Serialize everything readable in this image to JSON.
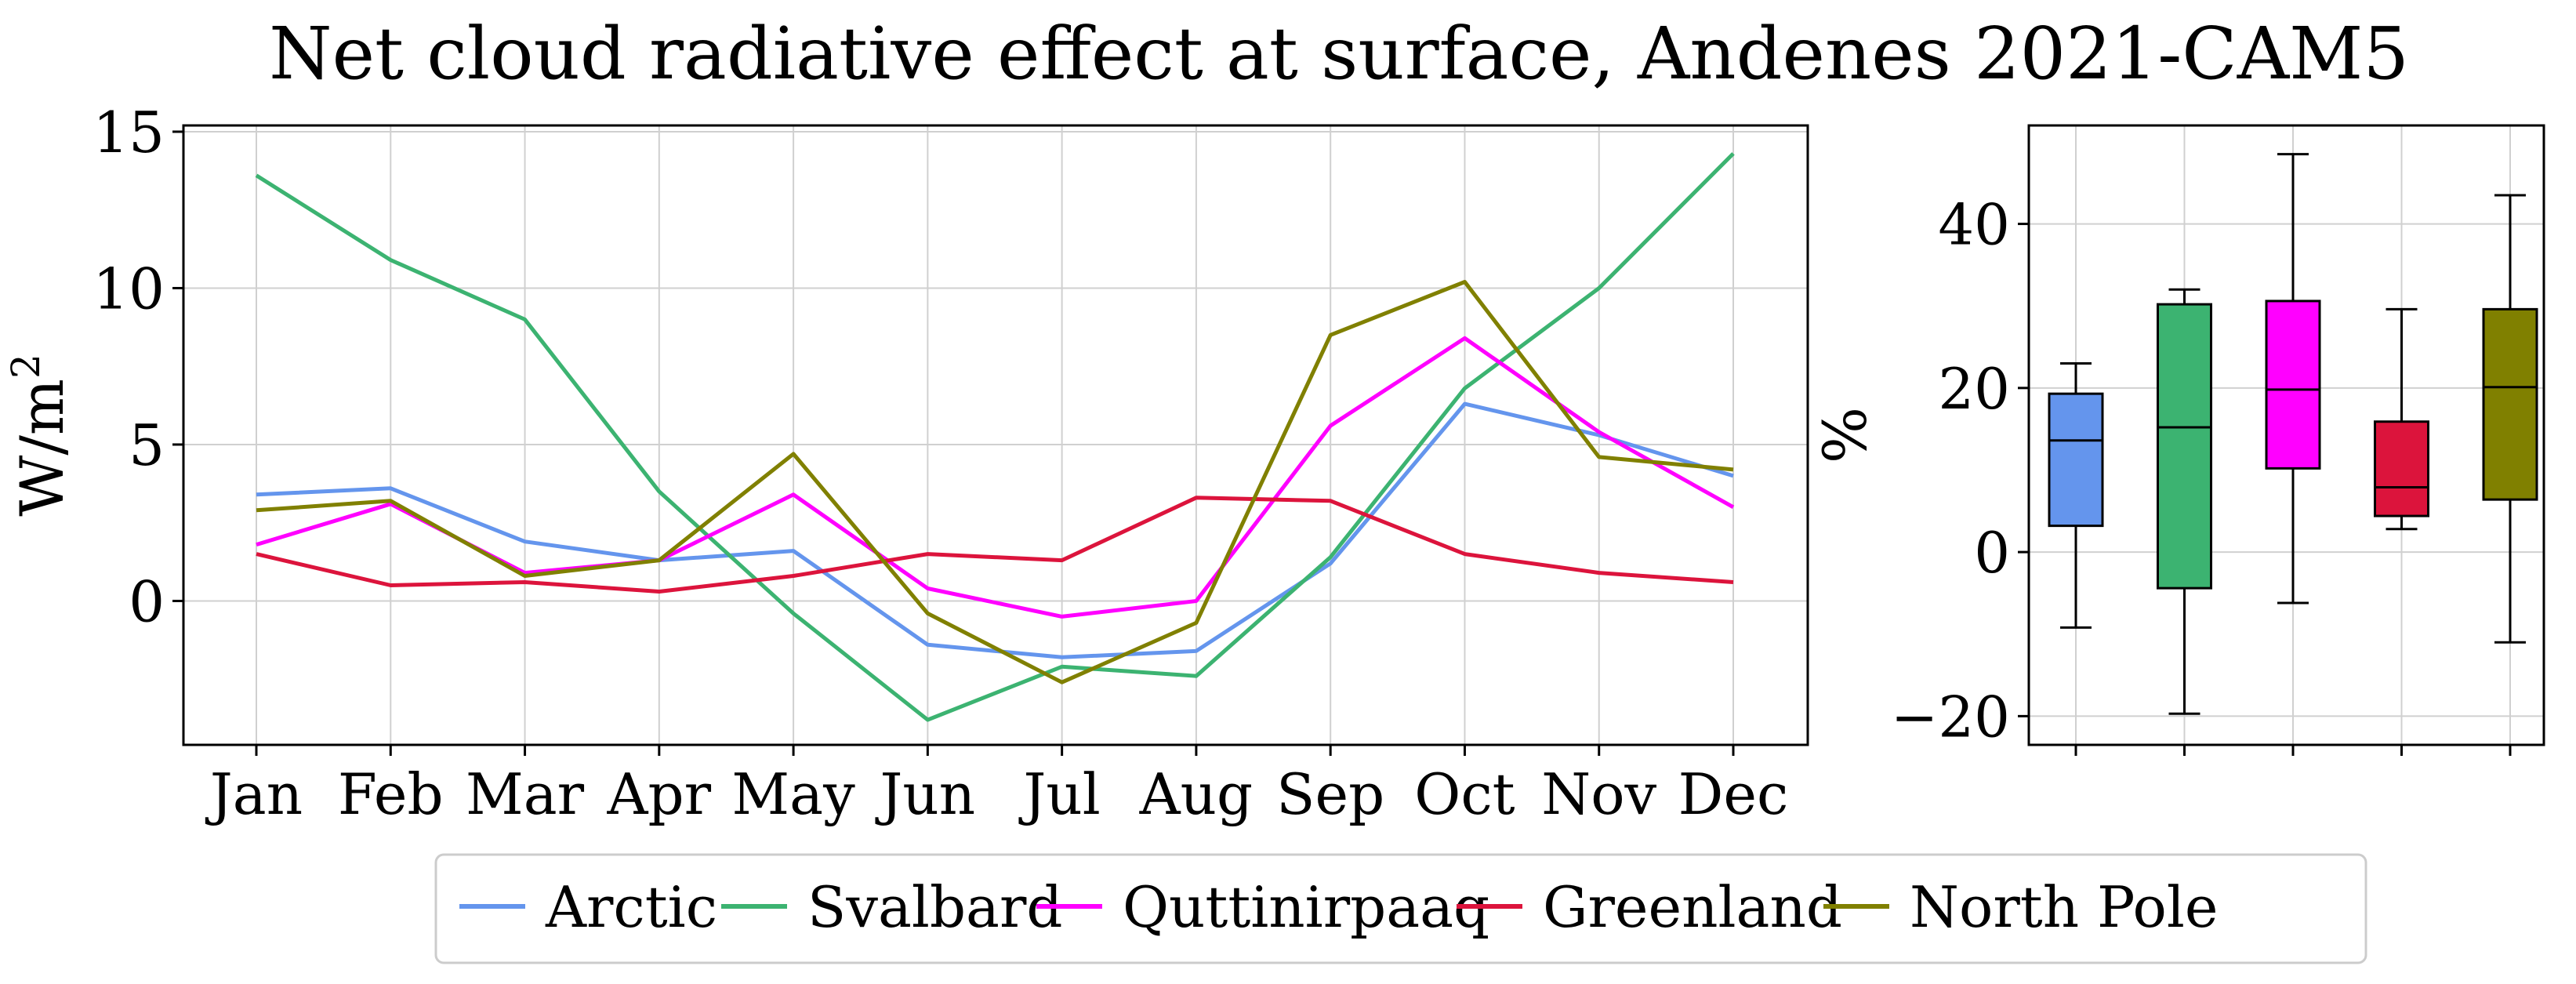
{
  "title": "Net cloud radiative effect at surface, Andenes 2021-CAM5",
  "colors": {
    "Arctic": "#6495ED",
    "Svalbard": "#3CB371",
    "Quttinirpaaq": "#FF00FF",
    "Greenland": "#DC143C",
    "North Pole": "#808000"
  },
  "legend": [
    "Arctic",
    "Svalbard",
    "Quttinirpaaq",
    "Greenland",
    "North Pole"
  ],
  "chart_data": [
    {
      "type": "line",
      "ylabel": "W/m",
      "ylabel_sup": "2",
      "ylim": [
        -4.6,
        15.2
      ],
      "yticks": [
        0,
        5,
        10,
        15
      ],
      "grid": true,
      "legend_placement": "bottom-center",
      "categories": [
        "Jan",
        "Feb",
        "Mar",
        "Apr",
        "May",
        "Jun",
        "Jul",
        "Aug",
        "Sep",
        "Oct",
        "Nov",
        "Dec"
      ],
      "series": [
        {
          "name": "Arctic",
          "values": [
            3.4,
            3.6,
            1.9,
            1.3,
            1.6,
            -1.4,
            -1.8,
            -1.6,
            1.2,
            6.3,
            5.3,
            4.0
          ]
        },
        {
          "name": "Svalbard",
          "values": [
            13.6,
            10.9,
            9.0,
            3.5,
            -0.4,
            -3.8,
            -2.1,
            -2.4,
            1.4,
            6.8,
            10.0,
            14.3
          ]
        },
        {
          "name": "Quttinirpaaq",
          "values": [
            1.8,
            3.1,
            0.9,
            1.3,
            3.4,
            0.4,
            -0.5,
            0.0,
            5.6,
            8.4,
            5.4,
            3.0
          ]
        },
        {
          "name": "Greenland",
          "values": [
            1.5,
            0.5,
            0.6,
            0.3,
            0.8,
            1.5,
            1.3,
            3.3,
            3.2,
            1.5,
            0.9,
            0.6
          ]
        },
        {
          "name": "North Pole",
          "values": [
            2.9,
            3.2,
            0.8,
            1.3,
            4.7,
            -0.4,
            -2.6,
            -0.7,
            8.5,
            10.2,
            4.6,
            4.2
          ]
        }
      ]
    },
    {
      "type": "box",
      "ylabel": "%",
      "ylim": [
        -23.5,
        52
      ],
      "yticks": [
        -20,
        0,
        20,
        40
      ],
      "grid": true,
      "boxes": [
        {
          "name": "Arctic",
          "whisker_low": -9.2,
          "q1": 3.2,
          "median": 13.6,
          "q3": 19.3,
          "whisker_high": 23.0
        },
        {
          "name": "Svalbard",
          "whisker_low": -19.7,
          "q1": -4.4,
          "median": 15.2,
          "q3": 30.2,
          "whisker_high": 32.0
        },
        {
          "name": "Quttinirpaaq",
          "whisker_low": -6.2,
          "q1": 10.2,
          "median": 19.8,
          "q3": 30.6,
          "whisker_high": 48.5
        },
        {
          "name": "Greenland",
          "whisker_low": 2.8,
          "q1": 4.4,
          "median": 7.9,
          "q3": 15.9,
          "whisker_high": 29.6
        },
        {
          "name": "North Pole",
          "whisker_low": -11.0,
          "q1": 6.4,
          "median": 20.1,
          "q3": 29.6,
          "whisker_high": 43.5
        }
      ]
    }
  ]
}
